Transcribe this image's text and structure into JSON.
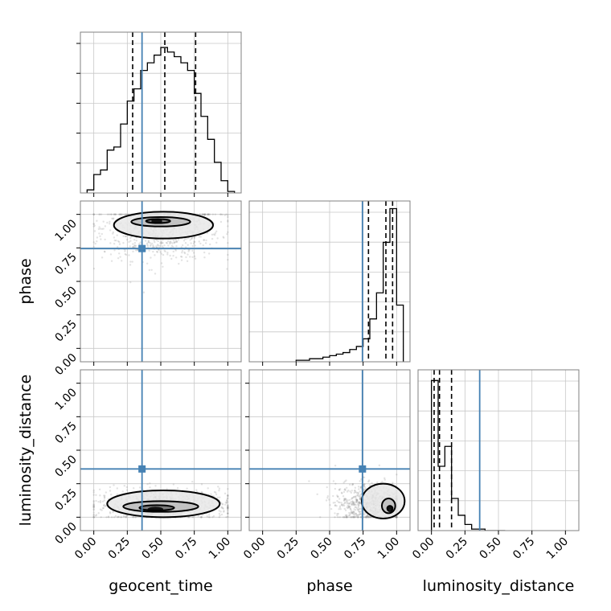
{
  "chart_data": {
    "type": "corner",
    "parameters": [
      "geocent_time",
      "phase",
      "luminosity_distance"
    ],
    "axis_labels": {
      "geocent_time": "geocent_time",
      "phase": "phase",
      "luminosity_distance": "luminosity_distance"
    },
    "ticks": [
      0.0,
      0.25,
      0.5,
      0.75,
      1.0
    ],
    "tick_labels": [
      "0.00",
      "0.25",
      "0.50",
      "0.75",
      "1.00"
    ],
    "grid": true,
    "colors": {
      "truth": "#4682b4",
      "histogram": "#000000",
      "contour": "#000000",
      "samples": "#808080",
      "grid": "#c8c8c8",
      "frame": "#808080"
    },
    "ranges": {
      "geocent_time": [
        -0.1,
        1.1
      ],
      "phase": [
        -0.1,
        1.1
      ],
      "luminosity_distance": [
        -0.1,
        1.1
      ]
    },
    "truths": {
      "geocent_time": 0.36,
      "phase": 0.745,
      "luminosity_distance": 0.36
    },
    "quantiles": {
      "geocent_time": [
        0.29,
        0.53,
        0.76
      ],
      "phase": [
        0.79,
        0.92,
        0.97
      ],
      "luminosity_distance": [
        0.02,
        0.06,
        0.15
      ]
    },
    "histograms": {
      "geocent_time": {
        "edges": [
          -0.05,
          0.0,
          0.05,
          0.1,
          0.15,
          0.2,
          0.25,
          0.3,
          0.35,
          0.4,
          0.45,
          0.5,
          0.55,
          0.6,
          0.65,
          0.7,
          0.75,
          0.8,
          0.85,
          0.9,
          0.95,
          1.0,
          1.05
        ],
        "counts": [
          0.02,
          0.12,
          0.15,
          0.28,
          0.3,
          0.45,
          0.6,
          0.68,
          0.8,
          0.85,
          0.9,
          0.95,
          0.92,
          0.89,
          0.85,
          0.8,
          0.65,
          0.5,
          0.35,
          0.2,
          0.08,
          0.01
        ]
      },
      "phase": {
        "edges": [
          0.25,
          0.3,
          0.35,
          0.4,
          0.45,
          0.5,
          0.55,
          0.6,
          0.65,
          0.7,
          0.75,
          0.8,
          0.85,
          0.9,
          0.95,
          1.0,
          1.05
        ],
        "counts": [
          0.01,
          0.01,
          0.02,
          0.02,
          0.03,
          0.04,
          0.05,
          0.06,
          0.08,
          0.1,
          0.15,
          0.28,
          0.45,
          0.78,
          1.0,
          0.37
        ]
      },
      "luminosity_distance": {
        "edges": [
          0.0,
          0.05,
          0.1,
          0.15,
          0.2,
          0.25,
          0.3,
          0.35,
          0.4,
          0.45,
          0.5,
          0.55
        ],
        "counts": [
          0.98,
          0.42,
          0.55,
          0.21,
          0.1,
          0.04,
          0.01,
          0.01,
          0.0,
          0.0,
          0.0
        ]
      }
    },
    "joint_densities": [
      {
        "x": "geocent_time",
        "y": "phase",
        "scatter_center": [
          0.5,
          0.9
        ],
        "scatter_spread": [
          0.22,
          0.12
        ],
        "peak": [
          0.47,
          0.95
        ],
        "contours": [
          {
            "center": [
              0.48,
              0.95
            ],
            "radius": [
              0.09,
              0.015
            ]
          },
          {
            "center": [
              0.5,
              0.945
            ],
            "radius": [
              0.22,
              0.035
            ]
          },
          {
            "center": [
              0.52,
              0.92
            ],
            "radius": [
              0.37,
              0.1
            ]
          }
        ]
      },
      {
        "x": "geocent_time",
        "y": "luminosity_distance",
        "scatter_center": [
          0.52,
          0.09
        ],
        "scatter_spread": [
          0.25,
          0.06
        ],
        "peak": [
          0.46,
          0.06
        ],
        "contours": [
          {
            "center": [
              0.47,
              0.07
            ],
            "radius": [
              0.13,
              0.02
            ]
          },
          {
            "center": [
              0.5,
              0.08
            ],
            "radius": [
              0.28,
              0.04
            ]
          },
          {
            "center": [
              0.52,
              0.1
            ],
            "radius": [
              0.42,
              0.1
            ]
          }
        ]
      },
      {
        "x": "phase",
        "y": "luminosity_distance",
        "scatter_center": [
          0.82,
          0.1
        ],
        "scatter_spread": [
          0.14,
          0.08
        ],
        "peak": [
          0.95,
          0.07
        ],
        "contours": [
          {
            "center": [
              0.95,
              0.065
            ],
            "radius": [
              0.02,
              0.02
            ]
          },
          {
            "center": [
              0.94,
              0.085
            ],
            "radius": [
              0.05,
              0.055
            ]
          },
          {
            "center": [
              0.9,
              0.12
            ],
            "radius": [
              0.16,
              0.13
            ]
          }
        ]
      }
    ]
  }
}
